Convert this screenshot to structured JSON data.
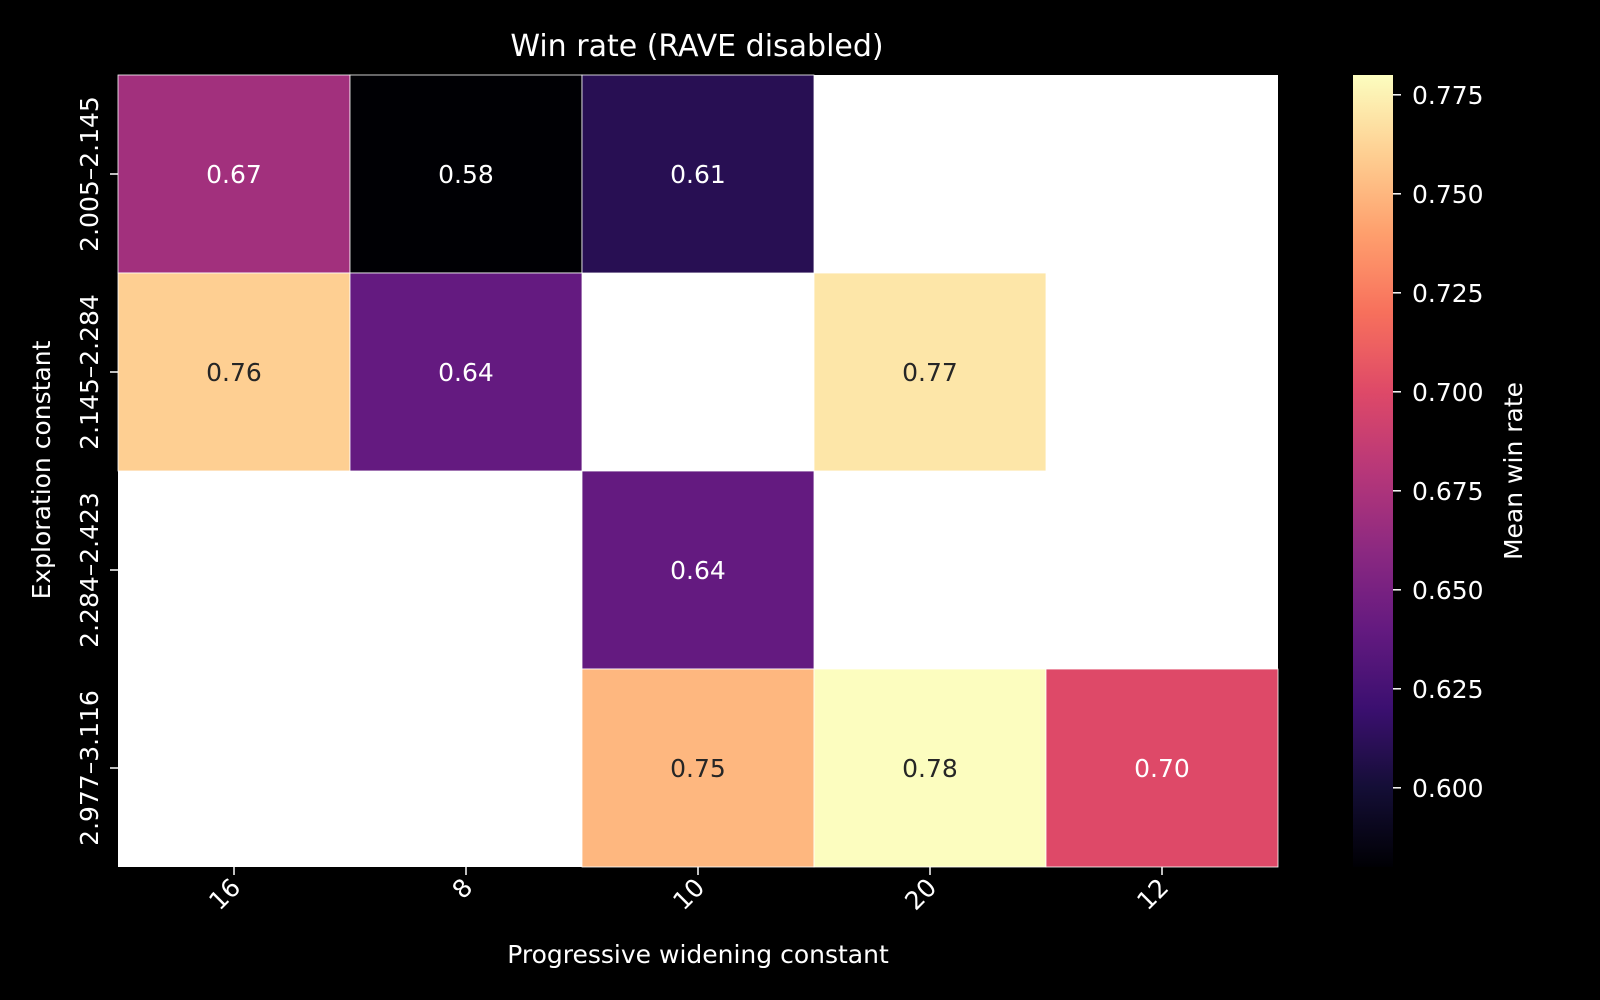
{
  "chart_data": {
    "type": "heatmap",
    "title": "Win rate (RAVE disabled)",
    "xlabel": "Progressive widening constant",
    "ylabel": "Exploration constant",
    "x_categories": [
      "16",
      "8",
      "10",
      "20",
      "12"
    ],
    "y_categories": [
      "2.005–2.145",
      "2.145–2.284",
      "2.284–2.423",
      "2.977–3.116"
    ],
    "values": [
      [
        0.67,
        0.58,
        0.61,
        null,
        null
      ],
      [
        0.76,
        0.64,
        null,
        0.77,
        null
      ],
      [
        null,
        null,
        0.64,
        null,
        null
      ],
      [
        null,
        null,
        0.75,
        0.78,
        0.7
      ]
    ],
    "cell_labels": [
      [
        "0.67",
        "0.58",
        "0.61",
        "",
        ""
      ],
      [
        "0.76",
        "0.64",
        "",
        "0.77",
        ""
      ],
      [
        "",
        "",
        "0.64",
        "",
        ""
      ],
      [
        "",
        "",
        "0.75",
        "0.78",
        "0.70"
      ]
    ],
    "colormap": "magma",
    "missing_color": "#ffffff",
    "colorbar": {
      "label": "Mean win rate",
      "range": [
        0.58,
        0.78
      ],
      "ticks": [
        0.6,
        0.625,
        0.65,
        0.675,
        0.7,
        0.725,
        0.75,
        0.775
      ],
      "tick_labels": [
        "0.600",
        "0.625",
        "0.650",
        "0.675",
        "0.700",
        "0.725",
        "0.750",
        "0.775"
      ]
    },
    "background": "#000000"
  }
}
